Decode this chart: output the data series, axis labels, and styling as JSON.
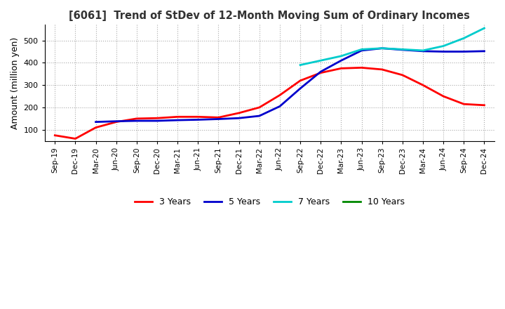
{
  "title": "[6061]  Trend of StDev of 12-Month Moving Sum of Ordinary Incomes",
  "ylabel": "Amount (million yen)",
  "ylim": [
    50,
    570
  ],
  "yticks": [
    100,
    200,
    300,
    400,
    500
  ],
  "colors": {
    "3 Years": "#ff0000",
    "5 Years": "#0000cc",
    "7 Years": "#00cccc",
    "10 Years": "#008800"
  },
  "x_labels": [
    "Sep-19",
    "Dec-19",
    "Mar-20",
    "Jun-20",
    "Sep-20",
    "Dec-20",
    "Mar-21",
    "Jun-21",
    "Sep-21",
    "Dec-21",
    "Mar-22",
    "Jun-22",
    "Sep-22",
    "Dec-22",
    "Mar-23",
    "Jun-23",
    "Sep-23",
    "Dec-23",
    "Mar-24",
    "Jun-24",
    "Sep-24",
    "Dec-24"
  ],
  "series": {
    "3 Years": [
      75,
      60,
      110,
      135,
      150,
      152,
      158,
      158,
      155,
      175,
      200,
      255,
      320,
      355,
      375,
      378,
      370,
      345,
      300,
      250,
      215,
      210
    ],
    "5 Years": [
      null,
      null,
      135,
      138,
      140,
      140,
      143,
      145,
      148,
      152,
      162,
      205,
      285,
      360,
      410,
      455,
      465,
      458,
      452,
      450,
      450,
      452
    ],
    "7 Years": [
      null,
      null,
      null,
      null,
      null,
      null,
      null,
      null,
      null,
      null,
      null,
      null,
      390,
      410,
      430,
      460,
      465,
      460,
      455,
      475,
      510,
      555
    ],
    "10 Years": []
  }
}
